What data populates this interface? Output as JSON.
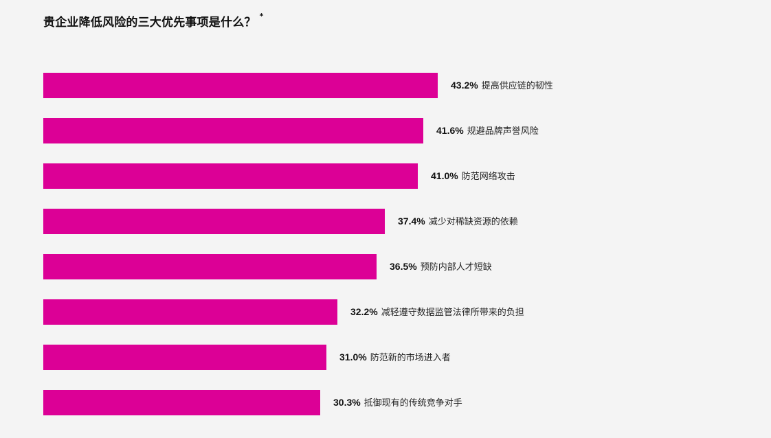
{
  "chart_data": {
    "type": "bar",
    "orientation": "horizontal",
    "title": "贵企业降低风险的三大优先事项是什么？",
    "title_mark": "*",
    "categories": [
      "提高供应链的韧性",
      "规避品牌声誉风险",
      "防范网络攻击",
      "减少对稀缺资源的依赖",
      "预防内部人才短缺",
      "减轻遵守数据监管法律所带来的负担",
      "防范新的市场进入者",
      "抵御现有的传统竞争对手"
    ],
    "values": [
      43.2,
      41.6,
      41.0,
      37.4,
      36.5,
      32.2,
      31.0,
      30.3
    ],
    "value_labels": [
      "43.2%",
      "41.6%",
      "41.0%",
      "37.4%",
      "36.5%",
      "32.2%",
      "31.0%",
      "30.3%"
    ],
    "unit": "%",
    "bar_color": "#dc0096",
    "grid": false,
    "legend": "none"
  }
}
